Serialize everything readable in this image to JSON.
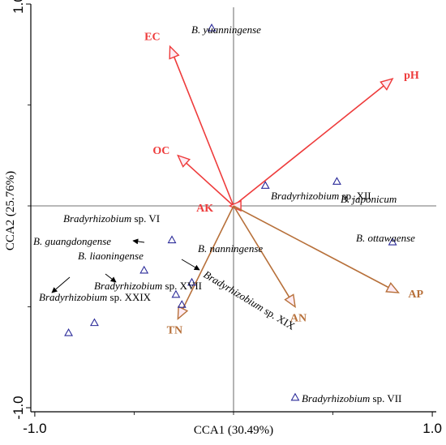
{
  "chart_data": {
    "type": "scatter",
    "xlabel": "CCA1 (30.49%)",
    "ylabel": "CCA2 (25.76%)",
    "xlim": [
      -1.02,
      1.02
    ],
    "ylim": [
      -1.02,
      1.0
    ],
    "x_ticks": [
      -1.0,
      1.0
    ],
    "y_ticks": [
      1.0,
      -1.0
    ],
    "x_tick_labels": [
      "-1.0",
      "1.0"
    ],
    "y_tick_labels": [
      "1.0",
      "-1.0"
    ],
    "grid": false,
    "zero_lines": true,
    "colors": {
      "red_vector": "#ee3b3b",
      "brown_vector": "#b7703a",
      "marker": "#2b2b99",
      "halo": "#fdebf3"
    },
    "species": [
      {
        "name": "B. yuanningense",
        "x": -0.11,
        "y": 0.88,
        "label_parts": [
          {
            "t": "B. yuanningense",
            "i": true
          }
        ]
      },
      {
        "name": "Bradyrhizobium sp. XII",
        "x": 0.16,
        "y": 0.1,
        "label_parts": [
          {
            "t": "Bradyrhizobium",
            "i": true
          },
          {
            "t": " sp. XII",
            "i": false
          }
        ]
      },
      {
        "name": "B. japonicum",
        "x": 0.52,
        "y": 0.12,
        "label_parts": [
          {
            "t": "B. japonicum",
            "i": true
          }
        ]
      },
      {
        "name": "Bradyrhizobium sp. VI",
        "x": -0.31,
        "y": -0.17,
        "label_parts": [
          {
            "t": "Bradyrhizobium",
            "i": true
          },
          {
            "t": " sp. VI",
            "i": false
          }
        ]
      },
      {
        "name": "B. ottawaense",
        "x": 0.8,
        "y": -0.18,
        "label_parts": [
          {
            "t": "B. ottawaense",
            "i": true
          }
        ]
      },
      {
        "name": "B. guangdongense",
        "x": -0.45,
        "y": -0.32,
        "label_parts": [
          {
            "t": "B. guangdongense",
            "i": true
          }
        ]
      },
      {
        "name": "B. nanningense",
        "x": -0.21,
        "y": -0.38,
        "label_parts": [
          {
            "t": "B. nanningense",
            "i": true
          }
        ]
      },
      {
        "name": "B. liaoningense",
        "x": -0.29,
        "y": -0.44,
        "label_parts": [
          {
            "t": "B. liaoningense",
            "i": true
          }
        ]
      },
      {
        "name": "Bradyrhizobium sp. XIX",
        "x": -0.26,
        "y": -0.49,
        "label_parts": [
          {
            "t": "Bradyrhizobium",
            "i": true
          },
          {
            "t": " sp. XIX",
            "i": false
          }
        ]
      },
      {
        "name": "Bradyrhizobium sp. XVII",
        "x": -0.7,
        "y": -0.58,
        "label_parts": [
          {
            "t": "Bradyrhizobium",
            "i": true
          },
          {
            "t": " sp. XVII",
            "i": false
          }
        ]
      },
      {
        "name": "Bradyrhizobium sp. XXIX",
        "x": -0.83,
        "y": -0.63,
        "label_parts": [
          {
            "t": "Bradyrhizobium",
            "i": true
          },
          {
            "t": " sp. XXIX",
            "i": false
          }
        ]
      },
      {
        "name": "Bradyrhizobium sp. VII",
        "x": 0.31,
        "y": -0.95,
        "label_parts": [
          {
            "t": "Bradyrhizobium",
            "i": true
          },
          {
            "t": " sp. VII",
            "i": false
          }
        ]
      }
    ],
    "vectors": [
      {
        "name": "EC",
        "x": -0.32,
        "y": 0.79,
        "color": "red"
      },
      {
        "name": "pH",
        "x": 0.8,
        "y": 0.63,
        "color": "red"
      },
      {
        "name": "OC",
        "x": -0.28,
        "y": 0.25,
        "color": "red"
      },
      {
        "name": "AK",
        "x": -0.02,
        "y": 0.0,
        "color": "red"
      },
      {
        "name": "TN",
        "x": -0.28,
        "y": -0.56,
        "color": "brown"
      },
      {
        "name": "AN",
        "x": 0.31,
        "y": -0.5,
        "color": "brown"
      },
      {
        "name": "AP",
        "x": 0.83,
        "y": -0.43,
        "color": "brown"
      }
    ]
  }
}
